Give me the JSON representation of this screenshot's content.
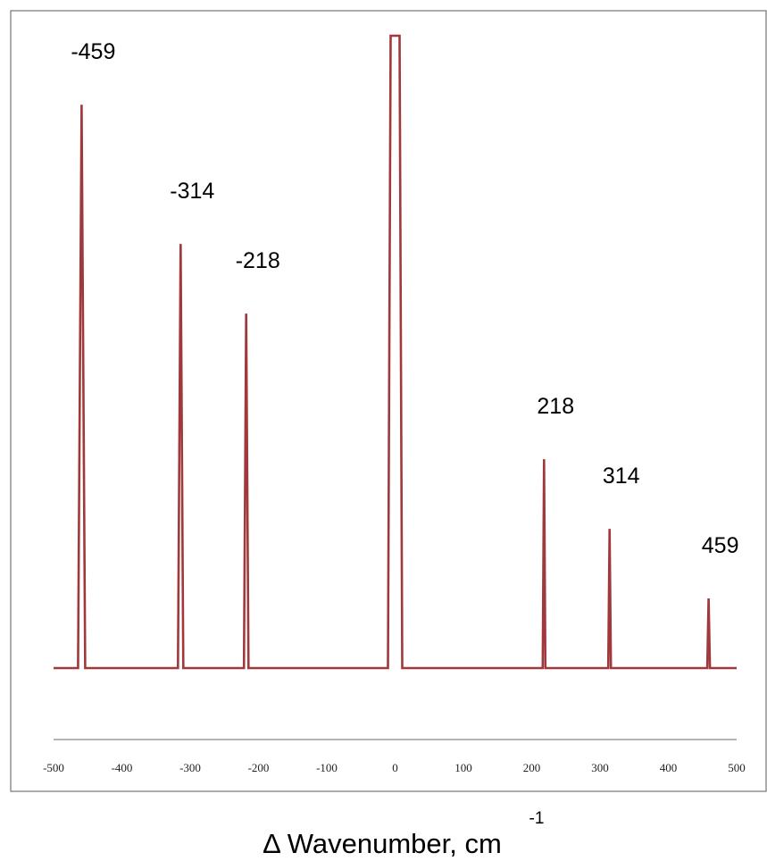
{
  "chart_data": {
    "type": "line",
    "title": "",
    "xlabel": "Δ Wavenumber, cm",
    "xlabel_superscript": "-1",
    "ylabel": "",
    "xlim": [
      -500,
      500
    ],
    "x_ticks": [
      -500,
      -400,
      -300,
      -200,
      -100,
      0,
      100,
      200,
      300,
      400,
      500
    ],
    "grid": false,
    "legend": "none",
    "line_color": "#a0393b",
    "series": [
      {
        "peaks": [
          {
            "x": -459,
            "intensity": 0.89,
            "label": "-459"
          },
          {
            "x": -314,
            "intensity": 0.67,
            "label": "-314"
          },
          {
            "x": -218,
            "intensity": 0.56,
            "label": "-218"
          },
          {
            "x": 0,
            "intensity": 1.0,
            "label": "",
            "clipped": true
          },
          {
            "x": 218,
            "intensity": 0.33,
            "label": "218"
          },
          {
            "x": 314,
            "intensity": 0.22,
            "label": "314"
          },
          {
            "x": 459,
            "intensity": 0.11,
            "label": "459"
          }
        ]
      }
    ]
  }
}
